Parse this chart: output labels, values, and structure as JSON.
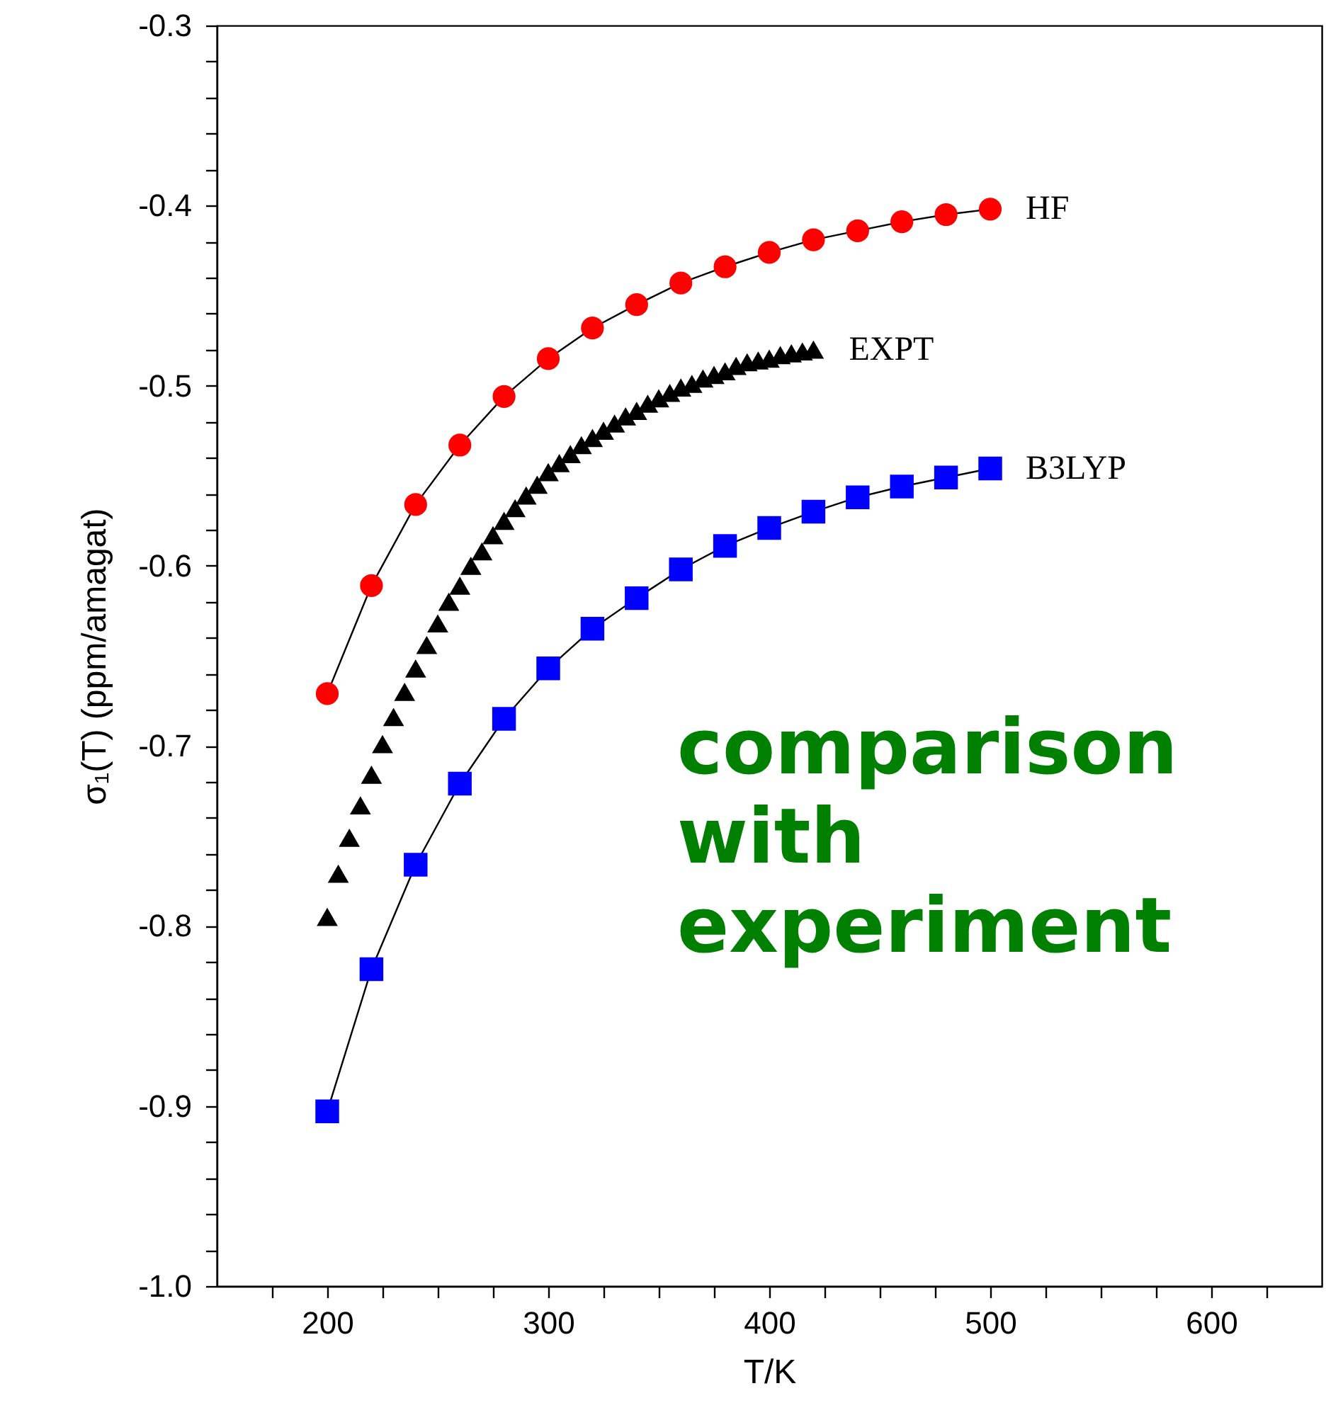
{
  "chart_data": {
    "type": "line",
    "xlabel": "T/K",
    "ylabel": "σ₁(T) (ppm/amagat)",
    "xlim": [
      150,
      650
    ],
    "xticks": [
      {
        "value": 175,
        "label": null
      },
      200,
      {
        "value": 225,
        "label": null
      },
      {
        "value": 250,
        "label": null
      },
      {
        "value": 275,
        "label": null
      },
      300,
      {
        "value": 325,
        "label": null
      },
      {
        "value": 350,
        "label": null
      },
      {
        "value": 375,
        "label": null
      },
      400,
      {
        "value": 425,
        "label": null
      },
      {
        "value": 450,
        "label": null
      },
      {
        "value": 475,
        "label": null
      },
      500,
      {
        "value": 525,
        "label": null
      },
      {
        "value": 550,
        "label": null
      },
      {
        "value": 575,
        "label": null
      },
      600,
      {
        "value": 625,
        "label": null
      }
    ],
    "ylim": [
      -1.0,
      -0.3
    ],
    "yticks": [
      {
        "value": -1.0,
        "label": "-1.0"
      },
      {
        "value": -0.98,
        "label": null
      },
      {
        "value": -0.96,
        "label": null
      },
      {
        "value": -0.94,
        "label": null
      },
      {
        "value": -0.92,
        "label": null
      },
      -0.9,
      {
        "value": -0.88,
        "label": null
      },
      {
        "value": -0.86,
        "label": null
      },
      {
        "value": -0.84,
        "label": null
      },
      {
        "value": -0.82,
        "label": null
      },
      -0.8,
      {
        "value": -0.78,
        "label": null
      },
      {
        "value": -0.76,
        "label": null
      },
      {
        "value": -0.74,
        "label": null
      },
      {
        "value": -0.72,
        "label": null
      },
      -0.7,
      {
        "value": -0.68,
        "label": null
      },
      {
        "value": -0.66,
        "label": null
      },
      {
        "value": -0.64,
        "label": null
      },
      {
        "value": -0.62,
        "label": null
      },
      -0.6,
      {
        "value": -0.58,
        "label": null
      },
      {
        "value": -0.56,
        "label": null
      },
      {
        "value": -0.54,
        "label": null
      },
      {
        "value": -0.52,
        "label": null
      },
      -0.5,
      {
        "value": -0.48,
        "label": null
      },
      {
        "value": -0.46,
        "label": null
      },
      {
        "value": -0.44,
        "label": null
      },
      {
        "value": -0.42,
        "label": null
      },
      -0.4,
      {
        "value": -0.38,
        "label": null
      },
      {
        "value": -0.36,
        "label": null
      },
      {
        "value": -0.34,
        "label": null
      },
      {
        "value": -0.32,
        "label": null
      },
      -0.3
    ],
    "grid": false,
    "line_style": "solid",
    "annotations": [
      "comparison with experiment"
    ],
    "series": [
      {
        "name": "HF",
        "marker": "circle",
        "color": "#ff0000",
        "x": [
          200,
          220,
          240,
          260,
          280,
          300,
          320,
          340,
          360,
          380,
          400,
          420,
          440,
          460,
          480,
          500
        ],
        "values": [
          -0.671,
          -0.611,
          -0.566,
          -0.533,
          -0.506,
          -0.485,
          -0.468,
          -0.455,
          -0.443,
          -0.434,
          -0.426,
          -0.419,
          -0.414,
          -0.409,
          -0.405,
          -0.402
        ]
      },
      {
        "name": "EXPT",
        "type": "scatter",
        "marker": "triangle",
        "color": "#000000",
        "x": [
          200,
          205,
          210,
          215,
          220,
          225,
          230,
          235,
          240,
          245,
          250,
          255,
          260,
          265,
          270,
          275,
          280,
          285,
          290,
          295,
          300,
          305,
          310,
          315,
          320,
          325,
          330,
          335,
          340,
          345,
          350,
          355,
          360,
          365,
          370,
          375,
          380,
          385,
          390,
          395,
          400,
          405,
          410,
          415,
          420
        ],
        "values": [
          -0.795,
          -0.771,
          -0.751,
          -0.733,
          -0.716,
          -0.699,
          -0.684,
          -0.67,
          -0.657,
          -0.644,
          -0.632,
          -0.62,
          -0.611,
          -0.6,
          -0.592,
          -0.583,
          -0.575,
          -0.568,
          -0.561,
          -0.555,
          -0.548,
          -0.543,
          -0.538,
          -0.533,
          -0.529,
          -0.525,
          -0.521,
          -0.517,
          -0.514,
          -0.51,
          -0.507,
          -0.504,
          -0.501,
          -0.499,
          -0.496,
          -0.494,
          -0.492,
          -0.489,
          -0.487,
          -0.486,
          -0.485,
          -0.483,
          -0.482,
          -0.481,
          -0.48
        ]
      },
      {
        "name": "B3LYP",
        "marker": "square",
        "color": "#0000ff",
        "x": [
          200,
          220,
          240,
          260,
          280,
          300,
          320,
          340,
          360,
          380,
          400,
          420,
          440,
          460,
          480,
          500
        ],
        "values": [
          -0.903,
          -0.824,
          -0.766,
          -0.721,
          -0.685,
          -0.657,
          -0.635,
          -0.618,
          -0.602,
          -0.589,
          -0.579,
          -0.57,
          -0.562,
          -0.556,
          -0.551,
          -0.546
        ]
      }
    ]
  }
}
